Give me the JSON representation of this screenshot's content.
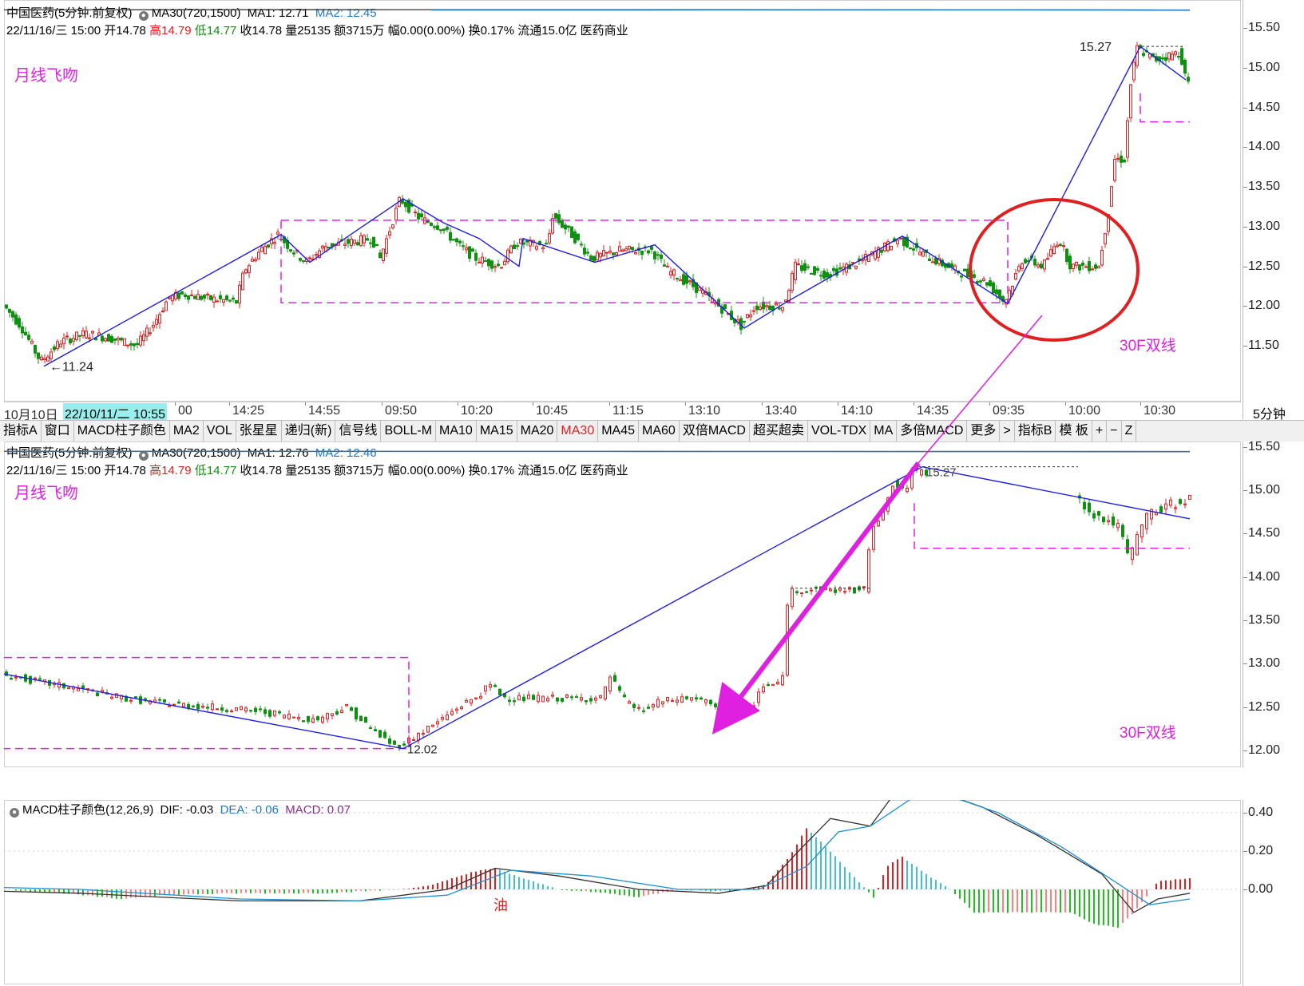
{
  "top_pane": {
    "info1": {
      "name": "中国医药",
      "period": "(5分钟.前复权)",
      "ma30": "MA30(720,1500)",
      "ma1": "MA1: 12.71",
      "ma2": "MA2: 12.45"
    },
    "info2": {
      "date": "22/11/16/三 15:00",
      "open_l": "开",
      "open": "14.78",
      "high_l": "高",
      "high": "14.79",
      "low_l": "低",
      "low": "14.77",
      "close": "收14.78",
      "vol": "量25135",
      "amt": "额3715万",
      "chg": "幅0.00(0.00%)",
      "turn": "换0.17%",
      "float": "流通15.0亿",
      "sector": "医药商业"
    },
    "note_left": "月线飞吻",
    "note_right": "30F双线",
    "label_high": "15.27",
    "label_low": "11.24",
    "y_ticks": [
      "15.50",
      "15.00",
      "14.50",
      "14.00",
      "13.50",
      "13.00",
      "12.50",
      "12.00",
      "11.50"
    ]
  },
  "x_axis": {
    "labels": [
      "10月10日",
      "22/10/11/二 10:55",
      "00",
      "14:25",
      "14:55",
      "09:50",
      "10:20",
      "10:45",
      "11:15",
      "13:10",
      "13:40",
      "14:10",
      "14:35",
      "09:35",
      "10:00",
      "10:30"
    ],
    "period": "5分钟"
  },
  "toolbar": [
    "指标A",
    "窗口",
    "MACD柱子颜色",
    "MA2",
    "VOL",
    "张星星",
    "递归(新)",
    "信号线",
    "BOLL-M",
    "MA10",
    "MA15",
    "MA20",
    "MA30",
    "MA45",
    "MA60",
    "双倍MACD",
    "超买超卖",
    "VOL-TDX",
    "MA",
    "多倍MACD",
    "更多",
    ">",
    "指标B",
    "模 板",
    "+",
    "−",
    "Z"
  ],
  "toolbar_active": "MA30",
  "mid_pane": {
    "info1": {
      "name": "中国医药",
      "period": "(5分钟.前复权)",
      "ma30": "MA30(720,1500)",
      "ma1": "MA1: 12.76",
      "ma2": "MA2: 12.46"
    },
    "info2": {
      "date": "22/11/16/三 15:00",
      "open_l": "开",
      "open": "14.78",
      "high_l": "高",
      "high": "14.79",
      "low_l": "低",
      "low": "14.77",
      "close": "收14.78",
      "vol": "量25135",
      "amt": "额3715万",
      "chg": "幅0.00(0.00%)",
      "turn": "换0.17%",
      "float": "流通15.0亿",
      "sector": "医药商业"
    },
    "note_left": "月线飞吻",
    "note_right": "30F双线",
    "label_high": "15.27",
    "label_low": "12.02",
    "y_ticks": [
      "15.50",
      "15.00",
      "14.50",
      "14.00",
      "13.50",
      "13.00",
      "12.50",
      "12.00"
    ]
  },
  "macd_pane": {
    "title": "MACD柱子颜色(12,26,9)",
    "dif": "DIF: -0.03",
    "dea": "DEA: -0.06",
    "macd": "MACD: 0.07",
    "marker": "油",
    "y_ticks": [
      "0.40",
      "0.20",
      "0.00"
    ]
  },
  "colors": {
    "up": "#e02020",
    "down": "#109010",
    "ma1": "#333333",
    "ma2": "#1e78c8",
    "trend": "#1e1ee0",
    "box": "#e020e0",
    "circle": "#e02020",
    "arrow": "#e020e0",
    "dea": "#1e90d0",
    "dif": "#333333"
  }
}
